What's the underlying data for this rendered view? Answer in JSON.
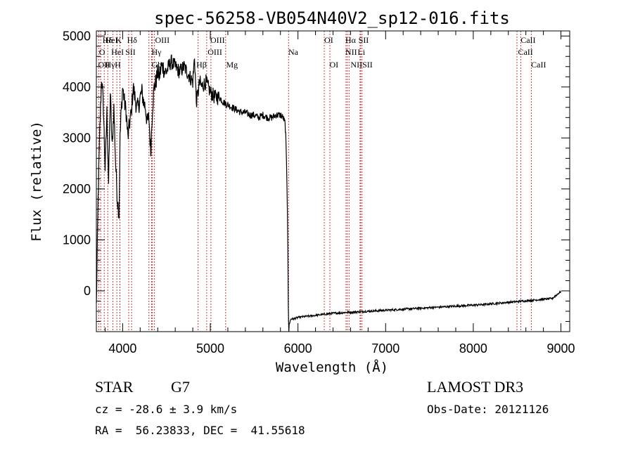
{
  "chart_data": {
    "type": "line",
    "title": "spec-56258-VB054N40V2_sp12-016.fits",
    "xlabel": "Wavelength (Å)",
    "ylabel": "Flux (relative)",
    "xlim": [
      3700,
      9100
    ],
    "ylim": [
      -800,
      5100
    ],
    "xticks": [
      4000,
      5000,
      6000,
      7000,
      8000,
      9000
    ],
    "yticks": [
      0,
      1000,
      2000,
      3000,
      4000,
      5000
    ],
    "series": [
      {
        "name": "spectrum",
        "x": [
          3700,
          3720,
          3740,
          3760,
          3780,
          3800,
          3820,
          3840,
          3860,
          3880,
          3900,
          3920,
          3940,
          3960,
          3970,
          3980,
          4000,
          4020,
          4040,
          4060,
          4080,
          4100,
          4120,
          4140,
          4160,
          4180,
          4200,
          4220,
          4240,
          4260,
          4280,
          4300,
          4320,
          4340,
          4360,
          4380,
          4400,
          4420,
          4440,
          4460,
          4480,
          4500,
          4550,
          4600,
          4650,
          4700,
          4750,
          4800,
          4820,
          4840,
          4860,
          4880,
          4900,
          4950,
          5000,
          5050,
          5100,
          5150,
          5200,
          5250,
          5300,
          5350,
          5400,
          5450,
          5500,
          5550,
          5600,
          5650,
          5700,
          5750,
          5800,
          5830,
          5850,
          5860,
          5870,
          5875,
          5880,
          5885,
          5890,
          5893,
          5896,
          5900,
          5920,
          5950,
          6000,
          6100,
          6200,
          6300,
          6400,
          6500,
          6560,
          6600,
          6700,
          6800,
          6900,
          7000,
          7100,
          7200,
          7300,
          7400,
          7500,
          7600,
          7700,
          7800,
          7900,
          8000,
          8100,
          8200,
          8300,
          8400,
          8500,
          8600,
          8700,
          8800,
          8900,
          9000
        ],
        "values": [
          -300,
          1800,
          3200,
          4200,
          3600,
          2400,
          3500,
          2100,
          3900,
          2800,
          3600,
          2500,
          1800,
          1500,
          3000,
          3400,
          4000,
          3700,
          3500,
          3000,
          3300,
          3500,
          4000,
          3800,
          3600,
          3600,
          3800,
          3900,
          3700,
          3600,
          3300,
          3400,
          2700,
          3600,
          4000,
          4100,
          4300,
          4200,
          4400,
          4400,
          4300,
          4300,
          4500,
          4400,
          4300,
          4400,
          4250,
          4100,
          4600,
          3700,
          3900,
          4100,
          4000,
          4100,
          3900,
          3800,
          3800,
          3700,
          3650,
          3600,
          3550,
          3500,
          3500,
          3450,
          3450,
          3400,
          3450,
          3400,
          3400,
          3450,
          3450,
          3400,
          3300,
          3100,
          2500,
          2000,
          1500,
          800,
          -300,
          -600,
          -800,
          -650,
          -550,
          -550,
          -520,
          -500,
          -480,
          -460,
          -440,
          -430,
          -420,
          -420,
          -410,
          -400,
          -390,
          -380,
          -370,
          -360,
          -350,
          -340,
          -330,
          -320,
          -310,
          -300,
          -290,
          -280,
          -270,
          -255,
          -240,
          -225,
          -210,
          -195,
          -180,
          -165,
          -150,
          -10
        ]
      }
    ],
    "line_markers": [
      {
        "name": "HeI",
        "wavelength": 3750
      },
      {
        "name": "OII",
        "wavelength": 3727
      },
      {
        "name": "OII",
        "wavelength": 3790
      },
      {
        "name": "Hγ",
        "wavelength": 3830
      },
      {
        "name": "HeI",
        "wavelength": 3889
      },
      {
        "name": "K",
        "wavelength": 3934
      },
      {
        "name": "H",
        "wavelength": 3969
      },
      {
        "name": "SII",
        "wavelength": 4069
      },
      {
        "name": "Hδ",
        "wavelength": 4102
      },
      {
        "name": "Gb",
        "wavelength": 4300
      },
      {
        "name": "OIII",
        "wavelength": 4330
      },
      {
        "name": "Hγ",
        "wavelength": 4340
      },
      {
        "name": "G",
        "wavelength": 4363
      },
      {
        "name": "Hβ",
        "wavelength": 4861
      },
      {
        "name": "OIII",
        "wavelength": 4959
      },
      {
        "name": "OIII",
        "wavelength": 5007
      },
      {
        "name": "Mg",
        "wavelength": 5175
      },
      {
        "name": "Na",
        "wavelength": 5893
      },
      {
        "name": "OI",
        "wavelength": 6300
      },
      {
        "name": "OI",
        "wavelength": 6364
      },
      {
        "name": "NII",
        "wavelength": 6548
      },
      {
        "name": "Hα",
        "wavelength": 6563
      },
      {
        "name": "NII",
        "wavelength": 6583
      },
      {
        "name": "SII",
        "wavelength": 6716
      },
      {
        "name": "Li",
        "wavelength": 6708
      },
      {
        "name": "SII",
        "wavelength": 6731
      },
      {
        "name": "CaII",
        "wavelength": 8498
      },
      {
        "name": "CaII",
        "wavelength": 8542
      },
      {
        "name": "CaII",
        "wavelength": 8662
      }
    ],
    "label_rows": [
      {
        "row": 1,
        "items": [
          {
            "text": "Hδ",
            "wavelength": 3770
          },
          {
            "text": "HeI",
            "wavelength": 3800
          },
          {
            "text": "K",
            "wavelength": 3920
          },
          {
            "text": "Hδ",
            "wavelength": 4050
          },
          {
            "text": "OIII",
            "wavelength": 4370
          },
          {
            "text": "OIII",
            "wavelength": 5000
          },
          {
            "text": "OI",
            "wavelength": 6300
          },
          {
            "text": "Hα",
            "wavelength": 6540
          },
          {
            "text": "SII",
            "wavelength": 6690
          },
          {
            "text": "CaII",
            "wavelength": 8540
          }
        ]
      },
      {
        "row": 2,
        "items": [
          {
            "text": "O",
            "wavelength": 3730
          },
          {
            "text": "HeI",
            "wavelength": 3870
          },
          {
            "text": "SII",
            "wavelength": 4030
          },
          {
            "text": "Hγ",
            "wavelength": 4330
          },
          {
            "text": "OIII",
            "wavelength": 4970
          },
          {
            "text": "Na",
            "wavelength": 5890
          },
          {
            "text": "NII",
            "wavelength": 6540
          },
          {
            "text": "Li",
            "wavelength": 6680
          },
          {
            "text": "CaII",
            "wavelength": 8510
          }
        ]
      },
      {
        "row": 3,
        "items": [
          {
            "text": "OII",
            "wavelength": 3720
          },
          {
            "text": "Hγ",
            "wavelength": 3800
          },
          {
            "text": "H",
            "wavelength": 3910
          },
          {
            "text": "Gb",
            "wavelength": 4330
          },
          {
            "text": "Hβ",
            "wavelength": 4840
          },
          {
            "text": "Mg",
            "wavelength": 5180
          },
          {
            "text": "OI",
            "wavelength": 6360
          },
          {
            "text": "NIISII",
            "wavelength": 6600
          },
          {
            "text": "CaII",
            "wavelength": 8660
          }
        ]
      }
    ]
  },
  "info": {
    "class_label": "STAR",
    "subclass": "G7",
    "survey": "LAMOST DR3",
    "cz": "cz = -28.6 ± 3.9 km/s",
    "obs_date": "Obs-Date: 20121126",
    "radec": "RA =  56.23833, DEC =  41.55618"
  },
  "colors": {
    "line_marker": "#c04040",
    "spectrum": "#000000"
  }
}
